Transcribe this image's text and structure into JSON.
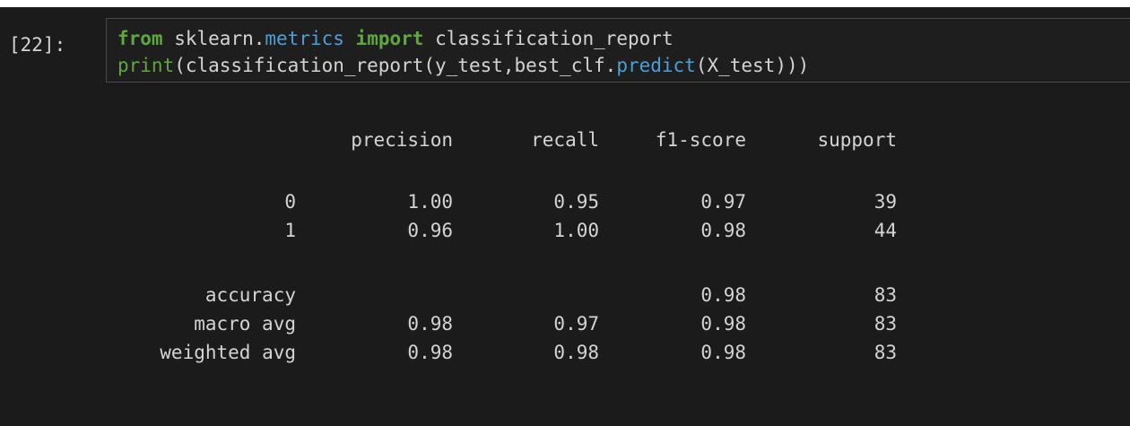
{
  "cell": {
    "prompt": "[22]:",
    "code": [
      [
        "from",
        "sklearn.",
        "metrics",
        "import",
        "classification_report"
      ],
      [
        "print",
        "(classification_report(y_test,best_clf.",
        "predict",
        "(X_test)))"
      ]
    ],
    "output": {
      "header": [
        "precision",
        "recall",
        "f1-score",
        "support"
      ],
      "rows": [
        [
          "0",
          "1.00",
          "0.95",
          "0.97",
          "39"
        ],
        [
          "1",
          "0.96",
          "1.00",
          "0.98",
          "44"
        ],
        [
          "accuracy",
          null,
          null,
          "0.98",
          "83"
        ],
        [
          "macro avg",
          "0.98",
          "0.97",
          "0.98",
          "83"
        ],
        [
          "weighted avg",
          "0.98",
          "0.98",
          "0.98",
          "83"
        ]
      ]
    }
  }
}
